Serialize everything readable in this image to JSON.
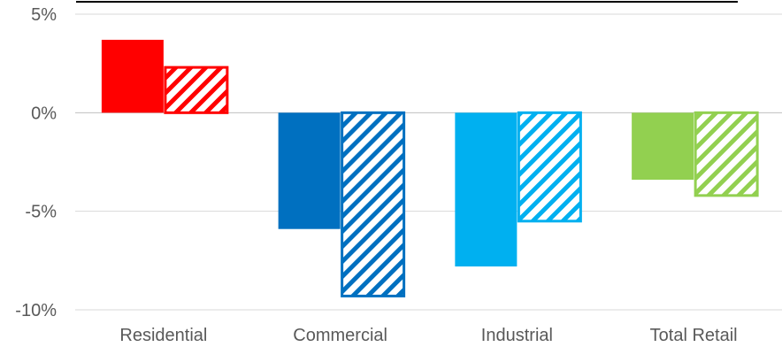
{
  "chart_data": {
    "type": "bar",
    "title": "",
    "categories": [
      "Residential",
      "Commercial",
      "Industrial",
      "Total Retail"
    ],
    "series": [
      {
        "values": [
          3.7,
          -5.9,
          -7.8,
          -3.4
        ],
        "pattern": "solid"
      },
      {
        "values": [
          2.3,
          -9.3,
          -5.5,
          -4.2
        ],
        "pattern": "hatched"
      }
    ],
    "category_colors": [
      "#ff0000",
      "#0070c0",
      "#00b0f0",
      "#92d050"
    ],
    "ylim": [
      -10,
      5
    ],
    "yticks": [
      5,
      0,
      -5,
      -10
    ],
    "ytick_labels": [
      "5%",
      "0%",
      "-5%",
      "-10%"
    ],
    "xlabel": "",
    "ylabel": "",
    "grid": true,
    "legend": "none"
  }
}
